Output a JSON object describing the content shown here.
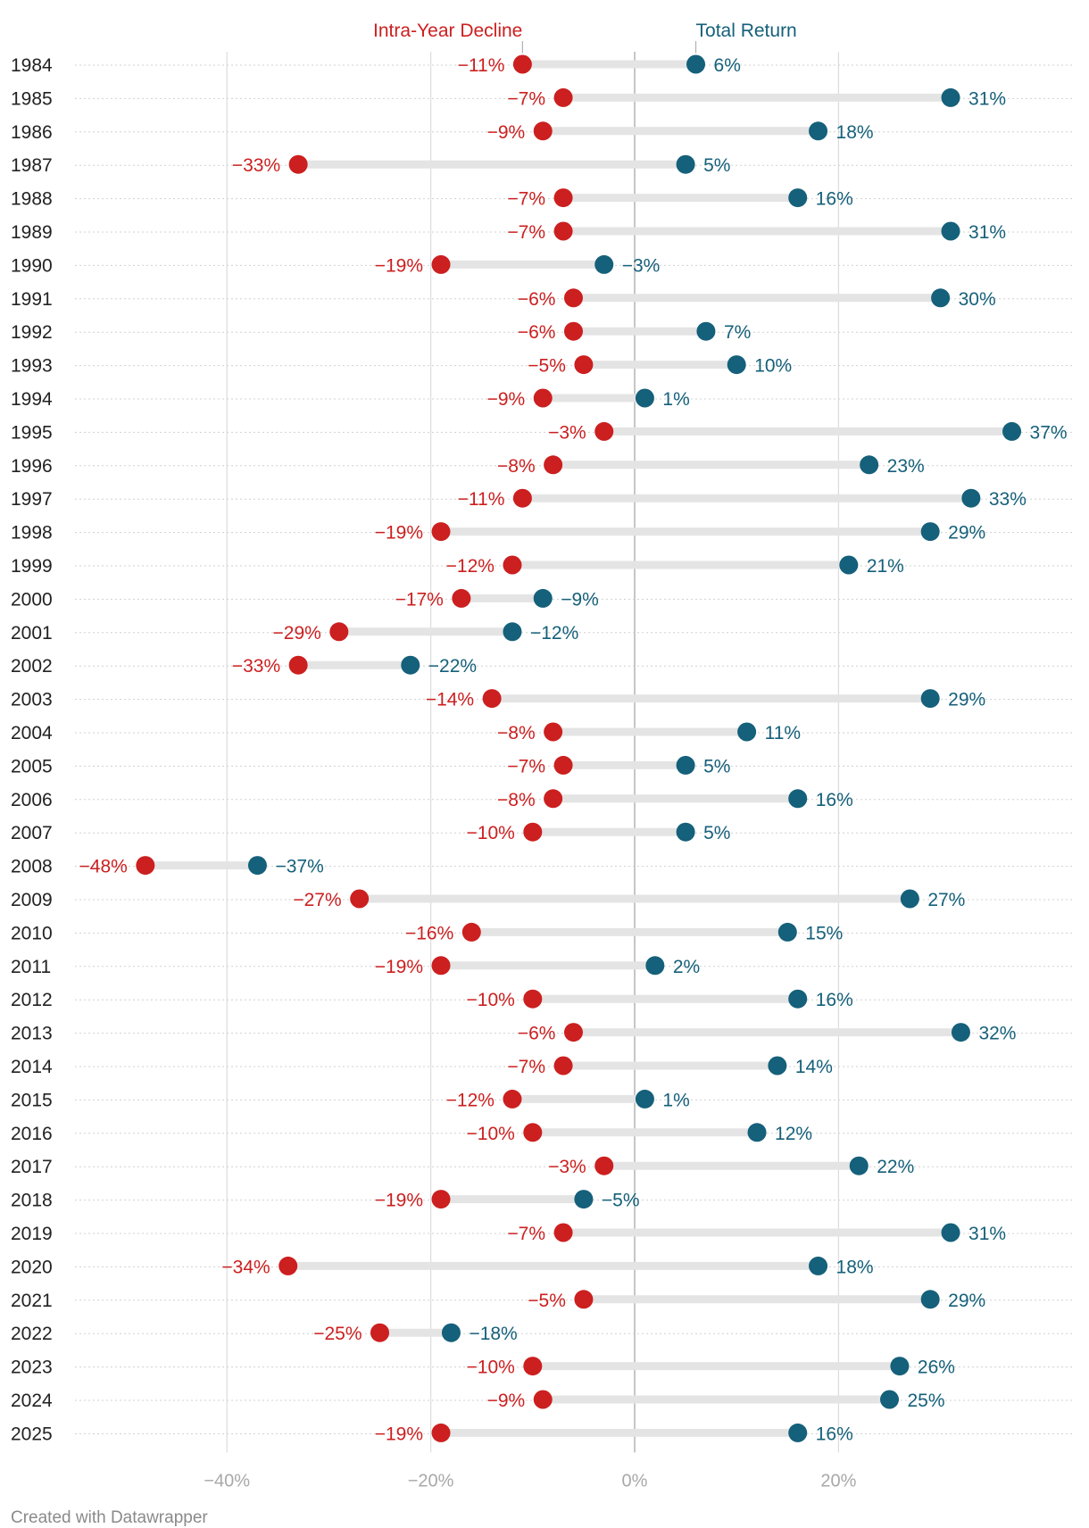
{
  "chart_data": {
    "type": "dot-range",
    "xlim": [
      -55,
      45
    ],
    "x_ticks": [
      {
        "value": -40,
        "label": "−40%"
      },
      {
        "value": -20,
        "label": "−20%"
      },
      {
        "value": 0,
        "label": "0%"
      },
      {
        "value": 20,
        "label": "20%"
      }
    ],
    "series": [
      {
        "name": "Intra-Year Decline",
        "color": "#cc1f1f"
      },
      {
        "name": "Total Return",
        "color": "#15607a"
      }
    ],
    "rows": [
      {
        "year": "1984",
        "decline": -11,
        "decline_label": "−11%",
        "ret": 6,
        "ret_label": "6%"
      },
      {
        "year": "1985",
        "decline": -7,
        "decline_label": "−7%",
        "ret": 31,
        "ret_label": "31%"
      },
      {
        "year": "1986",
        "decline": -9,
        "decline_label": "−9%",
        "ret": 18,
        "ret_label": "18%"
      },
      {
        "year": "1987",
        "decline": -33,
        "decline_label": "−33%",
        "ret": 5,
        "ret_label": "5%"
      },
      {
        "year": "1988",
        "decline": -7,
        "decline_label": "−7%",
        "ret": 16,
        "ret_label": "16%"
      },
      {
        "year": "1989",
        "decline": -7,
        "decline_label": "−7%",
        "ret": 31,
        "ret_label": "31%"
      },
      {
        "year": "1990",
        "decline": -19,
        "decline_label": "−19%",
        "ret": -3,
        "ret_label": "−3%"
      },
      {
        "year": "1991",
        "decline": -6,
        "decline_label": "−6%",
        "ret": 30,
        "ret_label": "30%"
      },
      {
        "year": "1992",
        "decline": -6,
        "decline_label": "−6%",
        "ret": 7,
        "ret_label": "7%"
      },
      {
        "year": "1993",
        "decline": -5,
        "decline_label": "−5%",
        "ret": 10,
        "ret_label": "10%"
      },
      {
        "year": "1994",
        "decline": -9,
        "decline_label": "−9%",
        "ret": 1,
        "ret_label": "1%"
      },
      {
        "year": "1995",
        "decline": -3,
        "decline_label": "−3%",
        "ret": 37,
        "ret_label": "37%"
      },
      {
        "year": "1996",
        "decline": -8,
        "decline_label": "−8%",
        "ret": 23,
        "ret_label": "23%"
      },
      {
        "year": "1997",
        "decline": -11,
        "decline_label": "−11%",
        "ret": 33,
        "ret_label": "33%"
      },
      {
        "year": "1998",
        "decline": -19,
        "decline_label": "−19%",
        "ret": 29,
        "ret_label": "29%"
      },
      {
        "year": "1999",
        "decline": -12,
        "decline_label": "−12%",
        "ret": 21,
        "ret_label": "21%"
      },
      {
        "year": "2000",
        "decline": -17,
        "decline_label": "−17%",
        "ret": -9,
        "ret_label": "−9%"
      },
      {
        "year": "2001",
        "decline": -29,
        "decline_label": "−29%",
        "ret": -12,
        "ret_label": "−12%"
      },
      {
        "year": "2002",
        "decline": -33,
        "decline_label": "−33%",
        "ret": -22,
        "ret_label": "−22%"
      },
      {
        "year": "2003",
        "decline": -14,
        "decline_label": "−14%",
        "ret": 29,
        "ret_label": "29%"
      },
      {
        "year": "2004",
        "decline": -8,
        "decline_label": "−8%",
        "ret": 11,
        "ret_label": "11%"
      },
      {
        "year": "2005",
        "decline": -7,
        "decline_label": "−7%",
        "ret": 5,
        "ret_label": "5%"
      },
      {
        "year": "2006",
        "decline": -8,
        "decline_label": "−8%",
        "ret": 16,
        "ret_label": "16%"
      },
      {
        "year": "2007",
        "decline": -10,
        "decline_label": "−10%",
        "ret": 5,
        "ret_label": "5%"
      },
      {
        "year": "2008",
        "decline": -48,
        "decline_label": "−48%",
        "ret": -37,
        "ret_label": "−37%"
      },
      {
        "year": "2009",
        "decline": -27,
        "decline_label": "−27%",
        "ret": 27,
        "ret_label": "27%"
      },
      {
        "year": "2010",
        "decline": -16,
        "decline_label": "−16%",
        "ret": 15,
        "ret_label": "15%"
      },
      {
        "year": "2011",
        "decline": -19,
        "decline_label": "−19%",
        "ret": 2,
        "ret_label": "2%"
      },
      {
        "year": "2012",
        "decline": -10,
        "decline_label": "−10%",
        "ret": 16,
        "ret_label": "16%"
      },
      {
        "year": "2013",
        "decline": -6,
        "decline_label": "−6%",
        "ret": 32,
        "ret_label": "32%"
      },
      {
        "year": "2014",
        "decline": -7,
        "decline_label": "−7%",
        "ret": 14,
        "ret_label": "14%"
      },
      {
        "year": "2015",
        "decline": -12,
        "decline_label": "−12%",
        "ret": 1,
        "ret_label": "1%"
      },
      {
        "year": "2016",
        "decline": -10,
        "decline_label": "−10%",
        "ret": 12,
        "ret_label": "12%"
      },
      {
        "year": "2017",
        "decline": -3,
        "decline_label": "−3%",
        "ret": 22,
        "ret_label": "22%"
      },
      {
        "year": "2018",
        "decline": -19,
        "decline_label": "−19%",
        "ret": -5,
        "ret_label": "−5%"
      },
      {
        "year": "2019",
        "decline": -7,
        "decline_label": "−7%",
        "ret": 31,
        "ret_label": "31%"
      },
      {
        "year": "2020",
        "decline": -34,
        "decline_label": "−34%",
        "ret": 18,
        "ret_label": "18%"
      },
      {
        "year": "2021",
        "decline": -5,
        "decline_label": "−5%",
        "ret": 29,
        "ret_label": "29%"
      },
      {
        "year": "2022",
        "decline": -25,
        "decline_label": "−25%",
        "ret": -18,
        "ret_label": "−18%"
      },
      {
        "year": "2023",
        "decline": -10,
        "decline_label": "−10%",
        "ret": 26,
        "ret_label": "26%"
      },
      {
        "year": "2024",
        "decline": -9,
        "decline_label": "−9%",
        "ret": 25,
        "ret_label": "25%"
      },
      {
        "year": "2025",
        "decline": -19,
        "decline_label": "−19%",
        "ret": 16,
        "ret_label": "16%"
      }
    ]
  },
  "credit": "Created with Datawrapper",
  "colors": {
    "decline": "#cc1f1f",
    "return": "#15607a",
    "range_bar": "#e4e4e4",
    "gridline": "#dcdcdc",
    "zero_line": "#b8b8b8",
    "row_rule": "#d0d0d0"
  }
}
